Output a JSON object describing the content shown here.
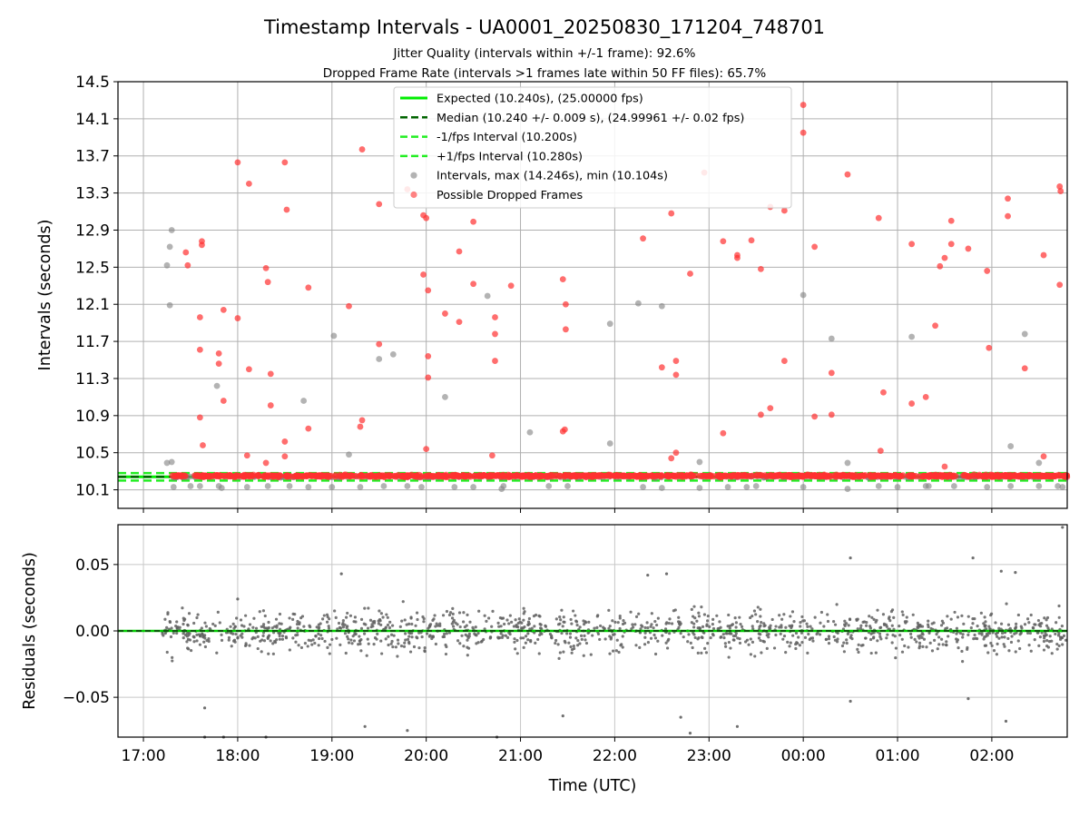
{
  "chart_data": [
    {
      "type": "scatter",
      "title": "Timestamp Intervals - UA0001_20250830_171204_748701",
      "subtitle_lines": [
        "Jitter Quality (intervals within +/-1 frame): 92.6%",
        "Dropped Frame Rate (intervals >1 frames late within 50 FF files): 65.7%"
      ],
      "xlabel": "",
      "ylabel": "Intervals (seconds)",
      "ylim": [
        9.9,
        14.5
      ],
      "yticks": [
        "10.1",
        "10.5",
        "10.9",
        "11.3",
        "11.7",
        "12.1",
        "12.5",
        "12.9",
        "13.3",
        "13.7",
        "14.1",
        "14.5"
      ],
      "xlim_hours": [
        16.73,
        26.8
      ],
      "grid": true,
      "legend_position": "upper center",
      "legend": [
        {
          "label": "Expected (10.240s), (25.00000 fps)",
          "style": "line",
          "color": "#00ee00"
        },
        {
          "label": "Median (10.240 +/- 0.009 s), (24.99961 +/- 0.02 fps)",
          "style": "dashed",
          "color": "#006400"
        },
        {
          "label": "-1/fps Interval (10.200s)",
          "style": "dashed",
          "color": "#22ee22"
        },
        {
          "label": "+1/fps Interval (10.280s)",
          "style": "dashed",
          "color": "#22ee22"
        },
        {
          "label": "Intervals, max (14.246s), min (10.104s)",
          "style": "marker",
          "color": "#808080"
        },
        {
          "label": "Possible Dropped Frames",
          "style": "marker",
          "color": "#ff3030"
        }
      ],
      "reference_lines": {
        "expected": 10.24,
        "median": 10.24,
        "minus_1_fps": 10.2,
        "plus_1_fps": 10.28
      },
      "series": [
        {
          "name": "Intervals, max (14.246s), min (10.104s)",
          "color": "#808080",
          "points": [
            [
              17.25,
              12.52
            ],
            [
              17.28,
              12.72
            ],
            [
              17.3,
              12.9
            ],
            [
              17.28,
              12.09
            ],
            [
              17.25,
              10.39
            ],
            [
              17.3,
              10.4
            ],
            [
              17.32,
              10.13
            ],
            [
              17.5,
              10.14
            ],
            [
              17.6,
              10.14
            ],
            [
              17.78,
              11.22
            ],
            [
              17.8,
              10.14
            ],
            [
              17.83,
              10.12
            ],
            [
              18.1,
              10.13
            ],
            [
              18.32,
              10.14
            ],
            [
              18.55,
              10.14
            ],
            [
              18.7,
              11.06
            ],
            [
              18.75,
              10.13
            ],
            [
              19.0,
              10.13
            ],
            [
              19.02,
              11.76
            ],
            [
              19.18,
              10.48
            ],
            [
              19.3,
              10.13
            ],
            [
              19.5,
              11.51
            ],
            [
              19.55,
              10.14
            ],
            [
              19.65,
              11.56
            ],
            [
              19.8,
              10.14
            ],
            [
              19.95,
              10.13
            ],
            [
              20.2,
              11.1
            ],
            [
              20.3,
              10.13
            ],
            [
              20.5,
              10.13
            ],
            [
              20.65,
              12.19
            ],
            [
              20.8,
              10.11
            ],
            [
              20.82,
              10.14
            ],
            [
              21.1,
              10.72
            ],
            [
              21.3,
              10.14
            ],
            [
              21.5,
              10.14
            ],
            [
              21.95,
              11.89
            ],
            [
              21.95,
              10.6
            ],
            [
              22.25,
              12.11
            ],
            [
              22.3,
              10.13
            ],
            [
              22.5,
              12.08
            ],
            [
              22.5,
              10.12
            ],
            [
              22.9,
              10.12
            ],
            [
              22.9,
              10.4
            ],
            [
              23.2,
              10.13
            ],
            [
              23.4,
              10.13
            ],
            [
              23.5,
              10.14
            ],
            [
              24.0,
              12.2
            ],
            [
              24.0,
              10.13
            ],
            [
              24.3,
              11.73
            ],
            [
              24.47,
              10.11
            ],
            [
              24.47,
              10.39
            ],
            [
              24.8,
              10.14
            ],
            [
              25.0,
              10.13
            ],
            [
              25.15,
              11.75
            ],
            [
              25.3,
              10.14
            ],
            [
              25.33,
              10.14
            ],
            [
              25.6,
              10.14
            ],
            [
              25.95,
              10.13
            ],
            [
              26.2,
              10.57
            ],
            [
              26.2,
              10.14
            ],
            [
              26.35,
              11.78
            ],
            [
              26.5,
              10.14
            ],
            [
              26.5,
              10.39
            ],
            [
              26.75,
              10.13
            ],
            [
              26.7,
              10.14
            ]
          ]
        },
        {
          "name": "Possible Dropped Frames",
          "color": "#ff3030",
          "points": [
            [
              17.45,
              12.66
            ],
            [
              17.47,
              12.52
            ],
            [
              17.62,
              12.74
            ],
            [
              17.62,
              12.78
            ],
            [
              17.6,
              11.96
            ],
            [
              17.6,
              11.61
            ],
            [
              17.6,
              10.88
            ],
            [
              17.63,
              10.58
            ],
            [
              17.8,
              11.57
            ],
            [
              17.8,
              11.46
            ],
            [
              17.85,
              12.04
            ],
            [
              17.85,
              11.06
            ],
            [
              18.0,
              13.63
            ],
            [
              18.0,
              11.95
            ],
            [
              18.12,
              13.4
            ],
            [
              18.12,
              11.4
            ],
            [
              18.1,
              10.47
            ],
            [
              18.3,
              12.49
            ],
            [
              18.32,
              12.34
            ],
            [
              18.35,
              11.35
            ],
            [
              18.35,
              11.01
            ],
            [
              18.3,
              10.39
            ],
            [
              18.5,
              13.63
            ],
            [
              18.52,
              13.12
            ],
            [
              18.5,
              10.62
            ],
            [
              18.5,
              10.46
            ],
            [
              18.75,
              12.28
            ],
            [
              18.75,
              10.76
            ],
            [
              19.18,
              12.08
            ],
            [
              19.32,
              13.77
            ],
            [
              19.32,
              10.85
            ],
            [
              19.3,
              10.78
            ],
            [
              19.5,
              13.18
            ],
            [
              19.5,
              11.67
            ],
            [
              19.8,
              13.34
            ],
            [
              19.97,
              13.06
            ],
            [
              20.0,
              13.03
            ],
            [
              19.97,
              12.42
            ],
            [
              20.02,
              12.25
            ],
            [
              20.02,
              11.54
            ],
            [
              20.02,
              11.31
            ],
            [
              20.0,
              10.54
            ],
            [
              20.2,
              12.0
            ],
            [
              20.35,
              11.91
            ],
            [
              20.35,
              12.67
            ],
            [
              20.5,
              12.32
            ],
            [
              20.5,
              12.99
            ],
            [
              20.7,
              10.47
            ],
            [
              20.73,
              11.96
            ],
            [
              20.73,
              11.78
            ],
            [
              20.73,
              11.49
            ],
            [
              20.9,
              12.3
            ],
            [
              21.45,
              12.37
            ],
            [
              21.48,
              12.1
            ],
            [
              21.48,
              11.83
            ],
            [
              21.45,
              10.73
            ],
            [
              21.47,
              10.75
            ],
            [
              22.3,
              12.81
            ],
            [
              22.5,
              11.42
            ],
            [
              22.6,
              13.08
            ],
            [
              22.65,
              11.49
            ],
            [
              22.65,
              11.34
            ],
            [
              22.65,
              10.5
            ],
            [
              22.6,
              10.44
            ],
            [
              22.8,
              12.43
            ],
            [
              22.95,
              13.52
            ],
            [
              23.15,
              12.78
            ],
            [
              23.15,
              10.71
            ],
            [
              23.3,
              12.63
            ],
            [
              23.3,
              12.6
            ],
            [
              23.45,
              12.79
            ],
            [
              23.55,
              12.48
            ],
            [
              23.55,
              10.91
            ],
            [
              23.65,
              10.98
            ],
            [
              23.65,
              13.15
            ],
            [
              23.8,
              13.11
            ],
            [
              23.8,
              11.49
            ],
            [
              24.0,
              14.25
            ],
            [
              24.0,
              13.95
            ],
            [
              24.12,
              12.72
            ],
            [
              24.12,
              10.89
            ],
            [
              24.3,
              11.36
            ],
            [
              24.3,
              10.91
            ],
            [
              24.47,
              13.5
            ],
            [
              24.8,
              13.03
            ],
            [
              24.85,
              11.15
            ],
            [
              24.82,
              10.52
            ],
            [
              25.15,
              12.75
            ],
            [
              25.15,
              11.03
            ],
            [
              25.3,
              11.1
            ],
            [
              25.4,
              11.87
            ],
            [
              25.45,
              12.51
            ],
            [
              25.5,
              12.6
            ],
            [
              25.57,
              12.75
            ],
            [
              25.57,
              13.0
            ],
            [
              25.75,
              12.7
            ],
            [
              25.95,
              12.46
            ],
            [
              25.97,
              11.63
            ],
            [
              26.17,
              13.24
            ],
            [
              26.17,
              13.05
            ],
            [
              26.35,
              11.41
            ],
            [
              26.55,
              12.63
            ],
            [
              26.55,
              10.46
            ],
            [
              26.72,
              13.37
            ],
            [
              26.73,
              13.32
            ],
            [
              26.72,
              12.31
            ],
            [
              25.5,
              10.35
            ]
          ],
          "baseline_band": {
            "x_range": [
              17.3,
              26.8
            ],
            "y_center": 10.25,
            "note": "dense band of dropped-frame markers near 10.25 s"
          }
        }
      ]
    },
    {
      "type": "scatter",
      "title": "",
      "xlabel": "Time (UTC)",
      "ylabel": "Residuals (seconds)",
      "ylim": [
        -0.08,
        0.08
      ],
      "yticks": [
        "−0.05",
        "0.00",
        "0.05"
      ],
      "xlim_hours": [
        16.73,
        26.8
      ],
      "xticks": [
        "17:00",
        "18:00",
        "19:00",
        "20:00",
        "21:00",
        "22:00",
        "23:00",
        "00:00",
        "01:00",
        "02:00"
      ],
      "grid": true,
      "zero_line_color": "#00cc00",
      "series": [
        {
          "name": "",
          "color": "#606060",
          "x_range": [
            17.2,
            26.8
          ],
          "typical_spread": 0.02,
          "max": 0.078,
          "min": -0.08,
          "points": [
            [
              26.75,
              0.078
            ],
            [
              24.5,
              0.055
            ],
            [
              25.8,
              0.055
            ],
            [
              18.0,
              0.024
            ],
            [
              19.1,
              0.043
            ],
            [
              22.35,
              0.042
            ],
            [
              22.55,
              0.043
            ],
            [
              26.1,
              0.045
            ],
            [
              26.25,
              0.044
            ],
            [
              17.65,
              -0.058
            ],
            [
              24.5,
              -0.053
            ],
            [
              25.75,
              -0.051
            ],
            [
              22.7,
              -0.065
            ],
            [
              21.45,
              -0.064
            ],
            [
              26.15,
              -0.068
            ],
            [
              19.35,
              -0.072
            ],
            [
              23.3,
              -0.072
            ],
            [
              19.8,
              -0.075
            ],
            [
              22.8,
              -0.077
            ],
            [
              17.65,
              -0.08
            ],
            [
              17.85,
              -0.08
            ],
            [
              18.3,
              -0.08
            ],
            [
              20.75,
              -0.08
            ]
          ]
        }
      ]
    }
  ]
}
